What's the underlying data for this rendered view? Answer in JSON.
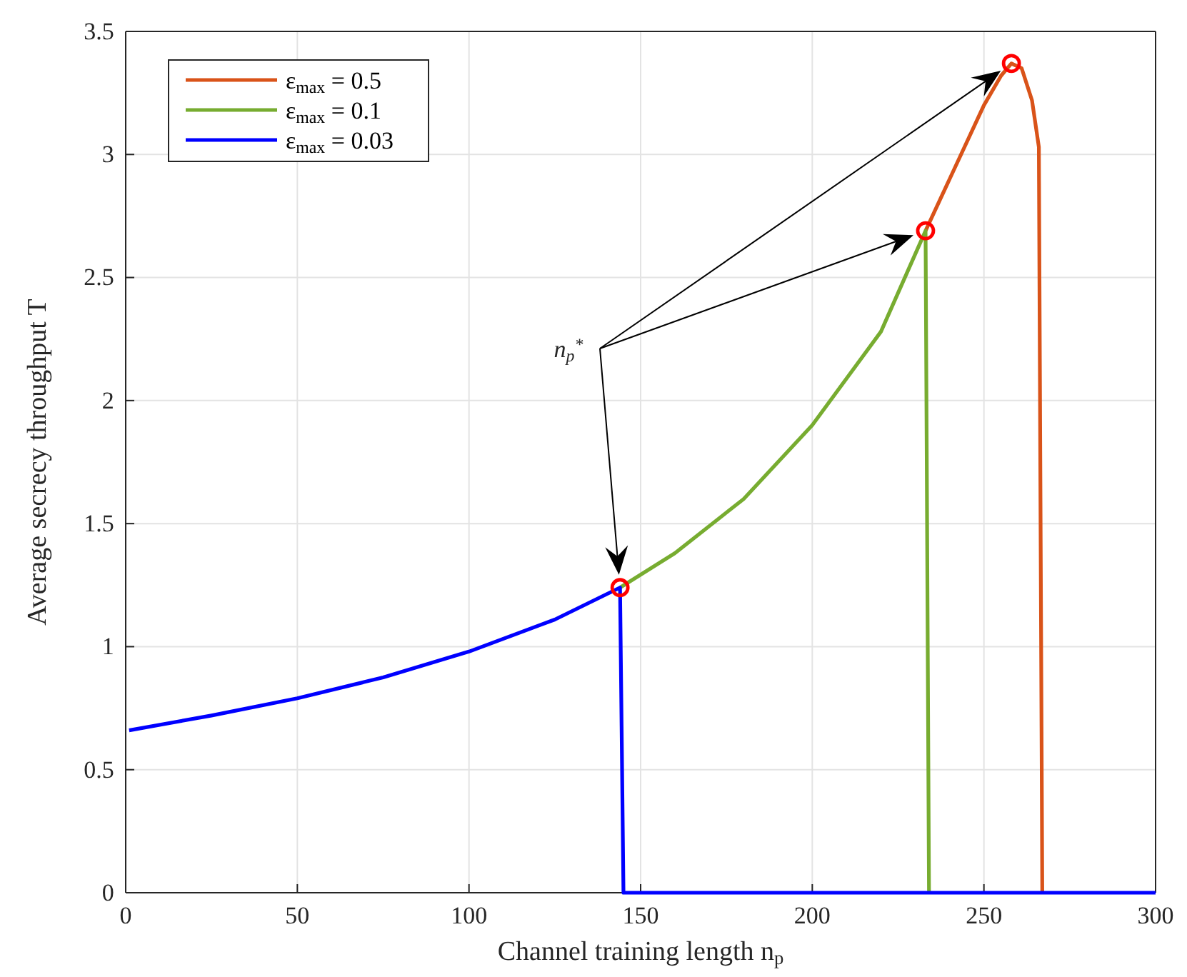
{
  "chart_data": {
    "type": "line",
    "xlabel": "Channel training length n$_{p}$",
    "ylabel": "Average secrecy throughput T",
    "xlim": [
      0,
      300
    ],
    "xticks": [
      0,
      50,
      100,
      150,
      200,
      250,
      300
    ],
    "ylim": [
      0,
      3.5
    ],
    "yticks": [
      0,
      0.5,
      1,
      1.5,
      2,
      2.5,
      3,
      3.5
    ],
    "grid": true,
    "legend": "top left",
    "line_style": "solid",
    "annotations": [
      "n$_{p}$$^{*}$"
    ],
    "series": [
      {
        "name": "ε$_{max}$ = 0.5",
        "color": "#d95319",
        "x": [
          233,
          240,
          250,
          255,
          258,
          261,
          264,
          266,
          267
        ],
        "values": [
          2.69,
          2.9,
          3.2,
          3.32,
          3.37,
          3.35,
          3.22,
          3.03,
          0
        ]
      },
      {
        "name": "ε$_{max}$ = 0.1",
        "color": "#77ac30",
        "x": [
          144,
          160,
          180,
          200,
          220,
          233,
          234
        ],
        "values": [
          1.24,
          1.38,
          1.6,
          1.9,
          2.28,
          2.69,
          0
        ]
      },
      {
        "name": "ε$_{max}$ = 0.03",
        "color": "#0000ff",
        "x": [
          1,
          25,
          50,
          75,
          100,
          125,
          144,
          145,
          300
        ],
        "values": [
          0.66,
          0.72,
          0.79,
          0.875,
          0.98,
          1.11,
          1.24,
          0,
          0
        ]
      },
      {
        "type": "scatter",
        "marker": "circle",
        "color": "#ff0000",
        "x": [
          144,
          233,
          258
        ],
        "values": [
          1.24,
          2.69,
          3.37
        ]
      }
    ]
  }
}
